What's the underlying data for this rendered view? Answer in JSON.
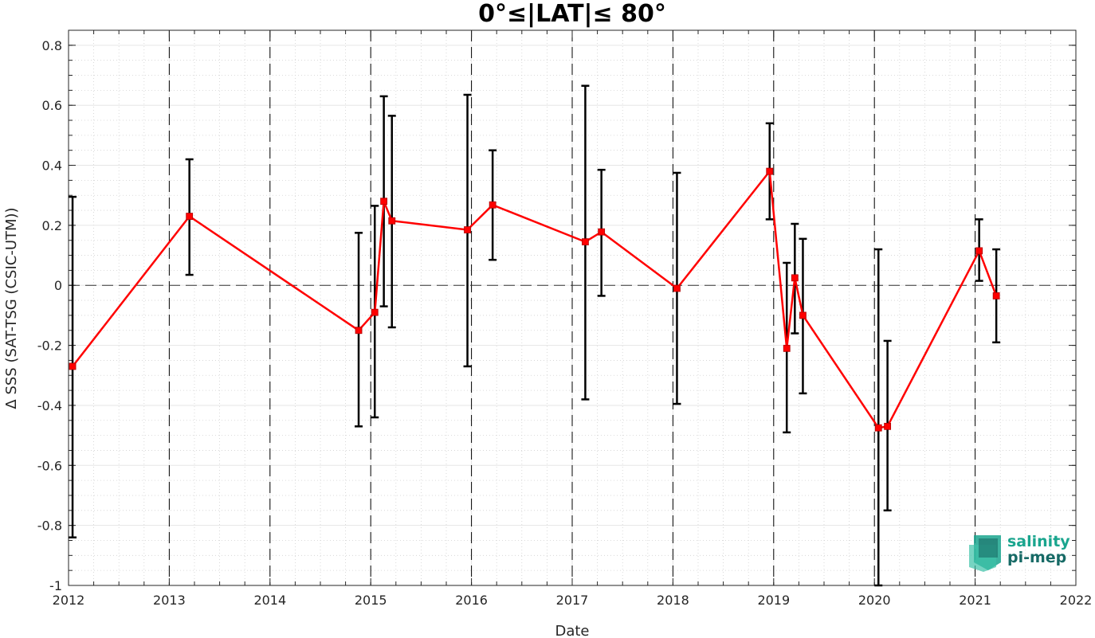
{
  "chart_data": {
    "type": "line",
    "title": "0°≤|LAT|≤ 80°",
    "xlabel": "Date",
    "ylabel": "Δ SSS (SAT-TSG (CSIC-UTM))",
    "xlim": [
      2012,
      2022
    ],
    "ylim": [
      -1,
      0.85
    ],
    "x_ticks": [
      "2012",
      "2013",
      "2014",
      "2015",
      "2016",
      "2017",
      "2018",
      "2019",
      "2020",
      "2021",
      "2022"
    ],
    "y_ticks": [
      "-1",
      "-0.8",
      "-0.6",
      "-0.4",
      "-0.2",
      "0",
      "0.2",
      "0.4",
      "0.6",
      "0.8"
    ],
    "y_tick_values": [
      -1,
      -0.8,
      -0.6,
      -0.4,
      -0.2,
      0,
      0.2,
      0.4,
      0.6,
      0.8
    ],
    "grid": true,
    "zero_line": true,
    "year_lines": [
      2013,
      2014,
      2015,
      2016,
      2017,
      2018,
      2019,
      2020,
      2021
    ],
    "series": [
      {
        "color": "#ff0000",
        "errorbar_color": "#000000",
        "points": [
          {
            "x": 2012.04,
            "y": -0.27,
            "lo": -0.84,
            "hi": 0.295
          },
          {
            "x": 2013.2,
            "y": 0.23,
            "lo": 0.035,
            "hi": 0.42
          },
          {
            "x": 2014.88,
            "y": -0.15,
            "lo": -0.47,
            "hi": 0.175
          },
          {
            "x": 2015.04,
            "y": -0.09,
            "lo": -0.44,
            "hi": 0.265
          },
          {
            "x": 2015.13,
            "y": 0.28,
            "lo": -0.07,
            "hi": 0.63
          },
          {
            "x": 2015.21,
            "y": 0.215,
            "lo": -0.14,
            "hi": 0.565
          },
          {
            "x": 2015.96,
            "y": 0.185,
            "lo": -0.27,
            "hi": 0.635
          },
          {
            "x": 2016.21,
            "y": 0.268,
            "lo": 0.085,
            "hi": 0.45
          },
          {
            "x": 2017.13,
            "y": 0.145,
            "lo": -0.38,
            "hi": 0.665
          },
          {
            "x": 2017.29,
            "y": 0.178,
            "lo": -0.035,
            "hi": 0.385
          },
          {
            "x": 2018.04,
            "y": -0.01,
            "lo": -0.395,
            "hi": 0.375
          },
          {
            "x": 2018.96,
            "y": 0.38,
            "lo": 0.22,
            "hi": 0.54
          },
          {
            "x": 2019.13,
            "y": -0.21,
            "lo": -0.49,
            "hi": 0.075
          },
          {
            "x": 2019.21,
            "y": 0.025,
            "lo": -0.16,
            "hi": 0.205
          },
          {
            "x": 2019.29,
            "y": -0.1,
            "lo": -0.36,
            "hi": 0.155
          },
          {
            "x": 2020.04,
            "y": -0.475,
            "lo": -1.0,
            "hi": 0.12
          },
          {
            "x": 2020.13,
            "y": -0.47,
            "lo": -0.75,
            "hi": -0.185
          },
          {
            "x": 2021.04,
            "y": 0.115,
            "lo": 0.015,
            "hi": 0.22
          },
          {
            "x": 2021.21,
            "y": -0.035,
            "lo": -0.19,
            "hi": 0.12
          }
        ]
      }
    ]
  },
  "logo": {
    "line1": "salinity",
    "line2": "pi-mep",
    "color_primary": "#1aa58e",
    "color_secondary": "#176a66"
  }
}
